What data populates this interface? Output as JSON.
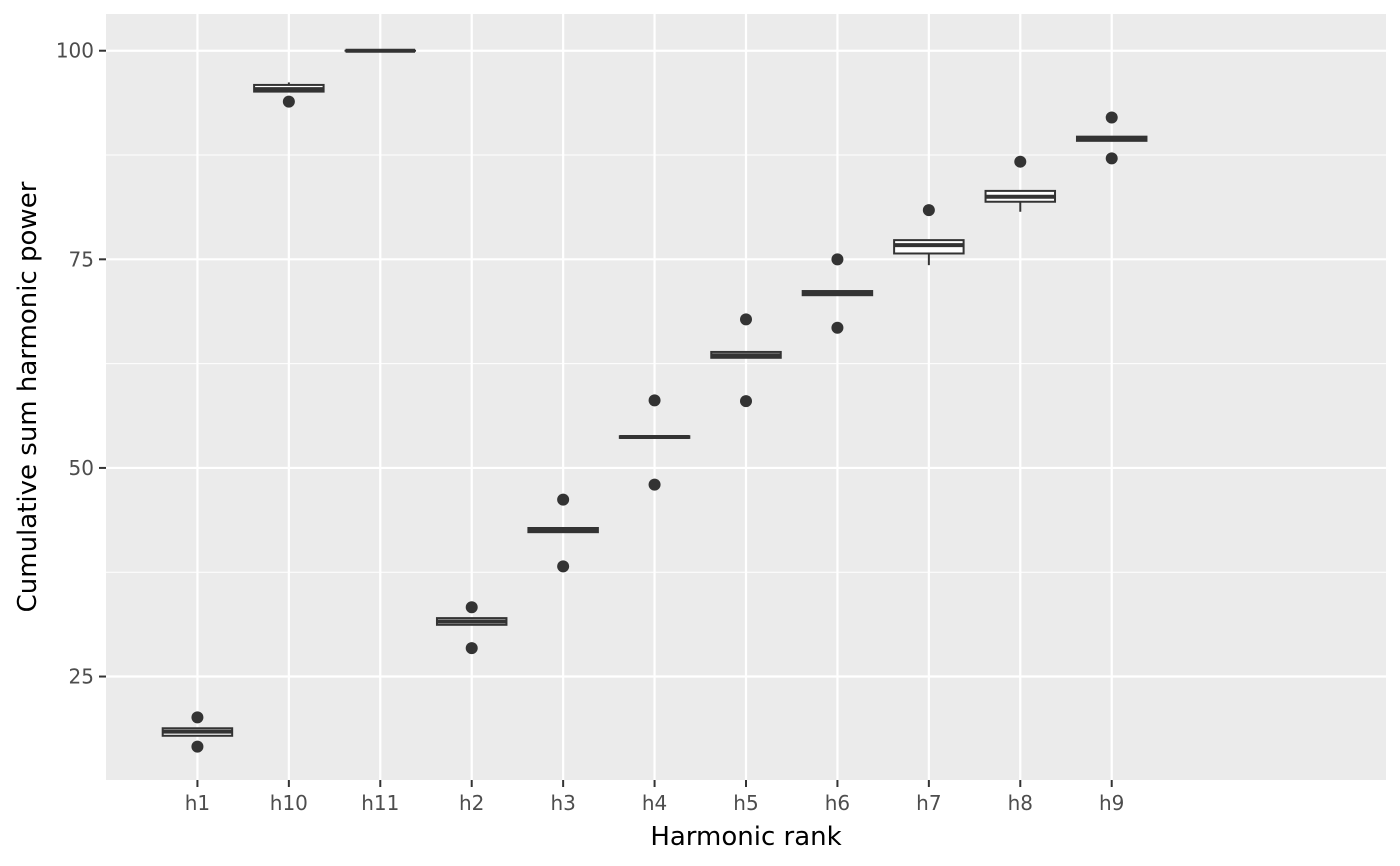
{
  "chart_data": {
    "type": "box",
    "xlabel": "Harmonic rank",
    "ylabel": "Cumulative sum harmonic power",
    "categories": [
      "h1",
      "h10",
      "h11",
      "h2",
      "h3",
      "h4",
      "h5",
      "h6",
      "h7",
      "h8",
      "h9"
    ],
    "ylim": [
      12.6,
      104.4
    ],
    "yticks": [
      25,
      50,
      75,
      100
    ],
    "grid": true,
    "boxes": [
      {
        "category": "h1",
        "whisker_low": 17.9,
        "q1": 17.9,
        "median": 18.4,
        "q3": 18.8,
        "whisker_high": 18.8,
        "outliers": [
          20.1,
          16.6
        ]
      },
      {
        "category": "h10",
        "whisker_low": 95.1,
        "q1": 95.1,
        "median": 95.4,
        "q3": 95.9,
        "whisker_high": 96.2,
        "outliers": [
          93.9
        ]
      },
      {
        "category": "h11",
        "whisker_low": 100.0,
        "q1": 100.0,
        "median": 100.0,
        "q3": 100.0,
        "whisker_high": 100.0,
        "outliers": []
      },
      {
        "category": "h2",
        "whisker_low": 31.2,
        "q1": 31.2,
        "median": 31.6,
        "q3": 32.0,
        "whisker_high": 32.0,
        "outliers": [
          33.3,
          28.4
        ]
      },
      {
        "category": "h3",
        "whisker_low": 42.3,
        "q1": 42.3,
        "median": 42.6,
        "q3": 42.8,
        "whisker_high": 42.8,
        "outliers": [
          46.2,
          38.2
        ]
      },
      {
        "category": "h4",
        "whisker_low": 53.6,
        "q1": 53.6,
        "median": 53.7,
        "q3": 53.8,
        "whisker_high": 53.8,
        "outliers": [
          58.1,
          48.0
        ]
      },
      {
        "category": "h5",
        "whisker_low": 63.2,
        "q1": 63.2,
        "median": 63.5,
        "q3": 63.9,
        "whisker_high": 63.9,
        "outliers": [
          67.8,
          58.0
        ]
      },
      {
        "category": "h6",
        "whisker_low": 70.7,
        "q1": 70.7,
        "median": 70.9,
        "q3": 71.2,
        "whisker_high": 71.2,
        "outliers": [
          75.0,
          66.8
        ]
      },
      {
        "category": "h7",
        "whisker_low": 74.3,
        "q1": 75.7,
        "median": 76.7,
        "q3": 77.3,
        "whisker_high": 77.3,
        "outliers": [
          80.9
        ]
      },
      {
        "category": "h8",
        "whisker_low": 80.7,
        "q1": 81.9,
        "median": 82.5,
        "q3": 83.2,
        "whisker_high": 83.2,
        "outliers": [
          86.7
        ]
      },
      {
        "category": "h9",
        "whisker_low": 89.2,
        "q1": 89.2,
        "median": 89.5,
        "q3": 89.7,
        "whisker_high": 89.7,
        "outliers": [
          92.0,
          87.1
        ]
      }
    ],
    "colors": {
      "panel_background": "#ebebeb",
      "grid": "#ffffff",
      "box_fill": "#ffffff",
      "box_stroke": "#333333",
      "tick_text": "#4d4d4d",
      "tick_mark": "#333333"
    }
  }
}
